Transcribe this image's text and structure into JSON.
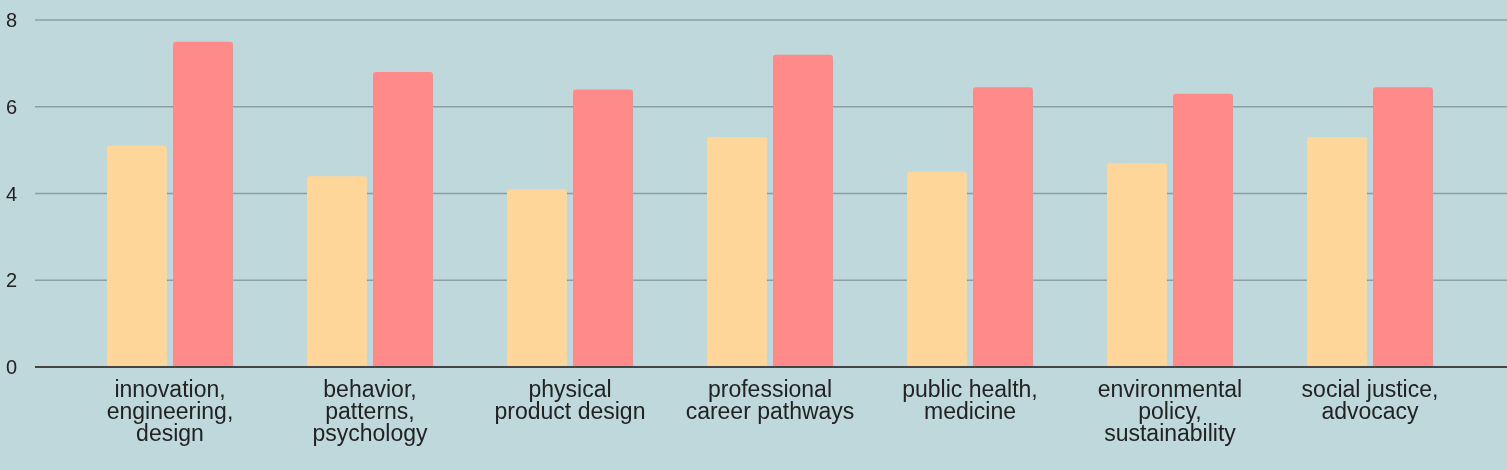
{
  "chart_data": {
    "type": "bar",
    "categories": [
      "innovation, engineering, design",
      "behavior, patterns, psychology",
      "physical product design",
      "professional career pathways",
      "public health, medicine",
      "environmental policy, sustainability",
      "social justice, advocacy"
    ],
    "series": [
      {
        "color": "#ffd699",
        "values": [
          5.1,
          4.4,
          4.1,
          5.3,
          4.5,
          4.7,
          5.3
        ]
      },
      {
        "color": "#ff8a8a",
        "values": [
          7.5,
          6.8,
          6.4,
          7.2,
          6.45,
          6.3,
          6.45
        ]
      }
    ],
    "ylim": [
      0,
      8
    ],
    "yticks": [
      0,
      2,
      4,
      6,
      8
    ],
    "grid": "y",
    "legend": false
  }
}
